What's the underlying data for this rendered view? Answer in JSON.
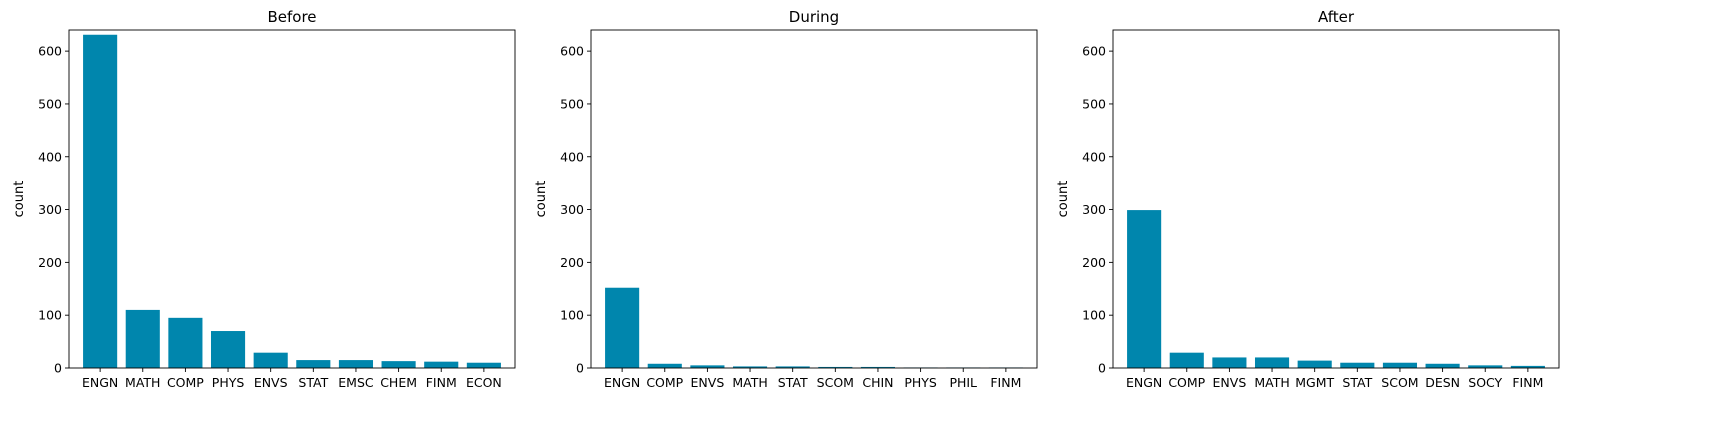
{
  "chart_data": [
    {
      "type": "bar",
      "title": "Before",
      "xlabel": "",
      "ylabel": "count",
      "ylim": [
        0,
        640
      ],
      "yticks": [
        0,
        100,
        200,
        300,
        400,
        500,
        600
      ],
      "categories": [
        "ENGN",
        "MATH",
        "COMP",
        "PHYS",
        "ENVS",
        "STAT",
        "EMSC",
        "CHEM",
        "FINM",
        "ECON"
      ],
      "values": [
        631,
        110,
        95,
        70,
        29,
        15,
        15,
        13,
        12,
        10
      ],
      "color": "#0086ad"
    },
    {
      "type": "bar",
      "title": "During",
      "xlabel": "",
      "ylabel": "count",
      "ylim": [
        0,
        640
      ],
      "yticks": [
        0,
        100,
        200,
        300,
        400,
        500,
        600
      ],
      "categories": [
        "ENGN",
        "COMP",
        "ENVS",
        "MATH",
        "STAT",
        "SCOM",
        "CHIN",
        "PHYS",
        "PHIL",
        "FINM"
      ],
      "values": [
        152,
        8,
        5,
        3,
        3,
        2,
        2,
        1,
        1,
        1
      ],
      "color": "#0086ad"
    },
    {
      "type": "bar",
      "title": "After",
      "xlabel": "",
      "ylabel": "count",
      "ylim": [
        0,
        640
      ],
      "yticks": [
        0,
        100,
        200,
        300,
        400,
        500,
        600
      ],
      "categories": [
        "ENGN",
        "COMP",
        "ENVS",
        "MATH",
        "MGMT",
        "STAT",
        "SCOM",
        "DESN",
        "SOCY",
        "FINM"
      ],
      "values": [
        299,
        29,
        20,
        20,
        14,
        10,
        10,
        8,
        5,
        4
      ],
      "color": "#0086ad"
    }
  ]
}
